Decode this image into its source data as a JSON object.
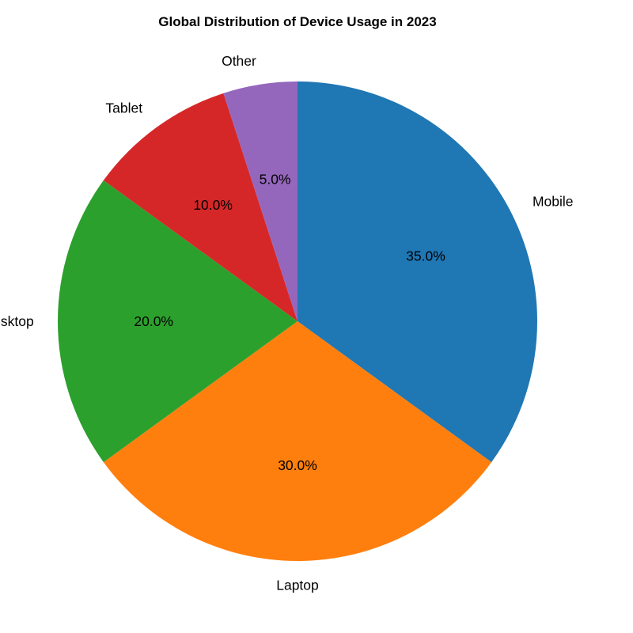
{
  "chart_data": {
    "type": "pie",
    "title": "Global Distribution of Device Usage in 2023",
    "categories": [
      "Mobile",
      "Laptop",
      "Desktop",
      "Tablet",
      "Other"
    ],
    "values": [
      35.0,
      30.0,
      20.0,
      10.0,
      5.0
    ],
    "value_labels": [
      "35.0%",
      "30.0%",
      "20.0%",
      "10.0%",
      "5.0%"
    ],
    "colors": [
      "#1f77b4",
      "#ff7f0e",
      "#2ca02c",
      "#d62728",
      "#9467bd"
    ],
    "start_angle_deg": 90,
    "direction": "clockwise",
    "legend": "none"
  }
}
